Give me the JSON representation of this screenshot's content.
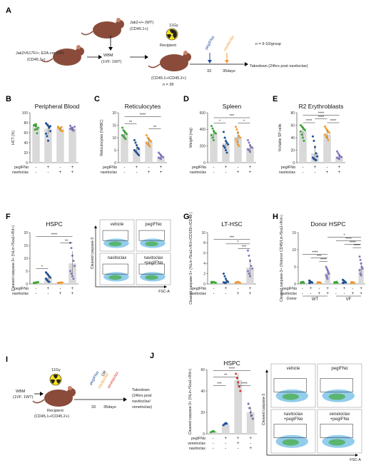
{
  "colors": {
    "vehicle": "#3aaa35",
    "pegifn": "#1b4f9c",
    "navitoclax": "#f39a2b",
    "combo": "#8478c4",
    "venetoclax": "#e0322e",
    "peg_ven": "#6b6bb5",
    "bar": "#d9d9d9"
  },
  "icons": [
    "mouse-icon",
    "radiation-icon",
    "arrow-icon"
  ],
  "panel_a": {
    "letter": "A",
    "donor_wt": "Jak2+/+ (WT)",
    "donor_wt_cd": "(CD45.1+)",
    "donor_vf": "Jak2V617F/+; E2A-cre (VF)",
    "donor_vf_cd": "(CD45.2+)",
    "wbm": "WBM",
    "wbm_ratio": "(1VF: 1WT)",
    "dose": "11Gy",
    "recipient": "Recipient",
    "recipient_cd": "(CD45.1+/CD45.2+)",
    "n_total": "n = 39",
    "treat1": "pegIFNα",
    "treat2": "navitoclax",
    "day1": "33",
    "day2": "35days",
    "n_group": "n = 9-10/group",
    "takedown": "Takedown (24hrs post navitoclax)"
  },
  "panel_i": {
    "letter": "I",
    "dose": "11Gy",
    "wbm": "WBM",
    "wbm_ratio": "(1VF: 1WT)",
    "recipient": "Recipient",
    "recipient_cd": "(CD45.1+/CD45.2+)",
    "treat1": "pegIFNα",
    "treat2": "navitoclax",
    "or": "OR",
    "treat3": "venetoclax",
    "day1": "33",
    "day2": "35days",
    "takedown_1": "Takedown",
    "takedown_2": "(24hrs post",
    "takedown_3": "navitoclax/",
    "takedown_4": "venetoclax)"
  },
  "flow_f": {
    "quads": [
      "vehicle",
      "pegIFNα",
      "navitoclax",
      "navitoclax\n+pegIFNα"
    ],
    "ylabel": "Cleaved caspase-3",
    "xlabel": "FSC-A"
  },
  "flow_j": {
    "quads": [
      "vehicle",
      "pegIFNα",
      "navitoclax\n+pegIFNα",
      "venetoclax\n+pegIFNα"
    ],
    "ylabel": "Cleaved caspase-3",
    "xlabel": "FSC-A"
  },
  "chart_data": [
    {
      "id": "B",
      "type": "bar",
      "title": "Peripheral Blood",
      "ylabel": "HCT (%)",
      "ylim": [
        0,
        100
      ],
      "yticks": [
        0,
        20,
        40,
        60,
        80,
        100
      ],
      "rows": {
        "pegIFNα": [
          "-",
          "+",
          "-",
          "+"
        ],
        "navitoclax": [
          "-",
          "-",
          "+",
          "+"
        ]
      },
      "groups": [
        {
          "color": "vehicle",
          "mean": 71,
          "points": [
            75,
            66,
            73,
            59,
            70,
            74,
            76,
            77,
            67
          ]
        },
        {
          "color": "pegifn",
          "mean": 68,
          "points": [
            79,
            76,
            74,
            70,
            63,
            58,
            53,
            44,
            71,
            73
          ]
        },
        {
          "color": "navitoclax",
          "mean": 68,
          "points": [
            72,
            68,
            66,
            71,
            63,
            70,
            69,
            67,
            64
          ]
        },
        {
          "color": "combo",
          "mean": 68,
          "points": [
            74,
            70,
            66,
            64,
            72,
            68,
            67,
            70,
            66
          ]
        }
      ],
      "sig": []
    },
    {
      "id": "C",
      "type": "bar",
      "title": "Reticulocytes",
      "ylabel": "Reticulocytes (%RBC)",
      "ylim": [
        0,
        20
      ],
      "yticks": [
        0,
        5,
        10,
        15,
        20
      ],
      "rows": {
        "pegIFNα": [
          "-",
          "+",
          "-",
          "+"
        ],
        "navitoclax": [
          "-",
          "-",
          "+",
          "+"
        ]
      },
      "groups": [
        {
          "color": "vehicle",
          "mean": 11.5,
          "points": [
            14,
            13,
            12.5,
            12,
            11.5,
            11,
            10.5,
            10,
            9.5
          ]
        },
        {
          "color": "pegifn",
          "mean": 5.5,
          "points": [
            9,
            8,
            7,
            6,
            5.5,
            5,
            4.5,
            4,
            3.5,
            3
          ]
        },
        {
          "color": "navitoclax",
          "mean": 8.5,
          "points": [
            11,
            10,
            9.5,
            9,
            8.5,
            8,
            7.5,
            7,
            6.5
          ]
        },
        {
          "color": "combo",
          "mean": 2.5,
          "points": [
            4,
            3.5,
            3,
            2.5,
            2.2,
            2,
            1.8,
            1.5
          ]
        }
      ],
      "sig": [
        {
          "g1": 0,
          "g2": 1,
          "label": "**",
          "y": 15.5
        },
        {
          "g1": 2,
          "g2": 3,
          "label": "**",
          "y": 13.5
        },
        {
          "g1": 0,
          "g2": 3,
          "label": "****",
          "y": 18.5
        }
      ]
    },
    {
      "id": "D",
      "type": "bar",
      "title": "Spleen",
      "ylabel": "Weight (mg)",
      "ylim": [
        0,
        600
      ],
      "yticks": [
        0,
        200,
        400,
        600
      ],
      "rows": {
        "pegIFNα": [
          "-",
          "+",
          "-",
          "+"
        ],
        "navitoclax": [
          "-",
          "-",
          "+",
          "+"
        ]
      },
      "groups": [
        {
          "color": "vehicle",
          "mean": 350,
          "points": [
            440,
            410,
            380,
            360,
            350,
            330,
            300,
            270
          ]
        },
        {
          "color": "pegifn",
          "mean": 230,
          "points": [
            370,
            300,
            260,
            240,
            220,
            200,
            180,
            150,
            120
          ]
        },
        {
          "color": "navitoclax",
          "mean": 310,
          "points": [
            430,
            400,
            360,
            320,
            300,
            280,
            250,
            220,
            200
          ]
        },
        {
          "color": "combo",
          "mean": 180,
          "points": [
            270,
            240,
            210,
            190,
            180,
            160,
            150,
            130
          ]
        }
      ],
      "sig": [
        {
          "g1": 0,
          "g2": 1,
          "label": "*",
          "y": 475
        },
        {
          "g1": 2,
          "g2": 3,
          "label": "*",
          "y": 475
        },
        {
          "g1": 0,
          "g2": 3,
          "label": "***",
          "y": 540
        }
      ]
    },
    {
      "id": "E",
      "type": "bar",
      "title": "R2 Erythroblasts",
      "ylabel": "%Viable SP cells",
      "ylim": [
        0,
        80
      ],
      "yticks": [
        0,
        20,
        40,
        60,
        80
      ],
      "rows": {
        "pegIFNα": [
          "-",
          "+",
          "-",
          "+"
        ],
        "navitoclax": [
          "-",
          "-",
          "+",
          "+"
        ]
      },
      "groups": [
        {
          "color": "vehicle",
          "mean": 50,
          "points": [
            60,
            58,
            56,
            54,
            52,
            50,
            45,
            40,
            35
          ]
        },
        {
          "color": "pegifn",
          "mean": 15,
          "points": [
            42,
            35,
            25,
            15,
            10,
            8,
            6,
            5,
            4
          ]
        },
        {
          "color": "navitoclax",
          "mean": 45,
          "points": [
            58,
            55,
            52,
            50,
            48,
            45,
            42,
            40,
            36
          ]
        },
        {
          "color": "combo",
          "mean": 10,
          "points": [
            18,
            15,
            12,
            10,
            9,
            8,
            7,
            6
          ]
        }
      ],
      "sig": [
        {
          "g1": 0,
          "g2": 1,
          "label": "****",
          "y": 64
        },
        {
          "g1": 2,
          "g2": 3,
          "label": "****",
          "y": 64
        },
        {
          "g1": 1,
          "g2": 2,
          "label": "****",
          "y": 70
        },
        {
          "g1": 0,
          "g2": 3,
          "label": "****",
          "y": 76
        }
      ]
    },
    {
      "id": "F",
      "type": "bar",
      "title": "HSPC",
      "ylabel": "Cleaved caspase-3+ (%Lin-/Sca1+/Kit+)",
      "ylim": [
        0,
        20
      ],
      "yticks": [
        0,
        5,
        10,
        15,
        20
      ],
      "rows": {
        "pegIFNα": [
          "-",
          "+",
          "-",
          "+"
        ],
        "navitoclax": [
          "-",
          "-",
          "+",
          "+"
        ]
      },
      "groups": [
        {
          "color": "vehicle",
          "mean": 0.5,
          "points": [
            0.3,
            0.4,
            0.5,
            0.6,
            0.7,
            0.4,
            0.5,
            0.6
          ]
        },
        {
          "color": "pegifn",
          "mean": 2.5,
          "points": [
            4.5,
            4,
            3.5,
            3,
            2.5,
            2,
            1.5,
            1,
            0.8
          ]
        },
        {
          "color": "navitoclax",
          "mean": 0.5,
          "points": [
            0.3,
            0.4,
            0.5,
            0.6,
            0.5,
            0.4
          ]
        },
        {
          "color": "combo",
          "mean": 8,
          "points": [
            16,
            14,
            11,
            9,
            7,
            5,
            4,
            3,
            2
          ]
        }
      ],
      "sig": [
        {
          "g1": 0,
          "g2": 1,
          "label": "*",
          "y": 6
        },
        {
          "g1": 2,
          "g2": 3,
          "label": "**",
          "y": 16
        },
        {
          "g1": 0,
          "g2": 3,
          "label": "****",
          "y": 18.5
        }
      ]
    },
    {
      "id": "G",
      "type": "bar",
      "title": "LT-HSC",
      "ylabel": "Cleaved caspase-3+ (%Lin-/Sca1+/Kit+/CD150+/CD48-)",
      "ylim": [
        0,
        10
      ],
      "yticks": [
        0,
        2,
        4,
        6,
        8,
        10
      ],
      "rows": {
        "pegIFNα": [
          "-",
          "+",
          "-",
          "+"
        ],
        "navitoclax": [
          "-",
          "-",
          "+",
          "+"
        ]
      },
      "groups": [
        {
          "color": "vehicle",
          "mean": 0.3,
          "points": [
            0.2,
            0.3,
            0.4,
            0.3,
            0.2,
            0.4,
            0.3
          ]
        },
        {
          "color": "pegifn",
          "mean": 0.6,
          "points": [
            2,
            1.5,
            1,
            0.6,
            0.4,
            0.3,
            0.2,
            0.2
          ]
        },
        {
          "color": "navitoclax",
          "mean": 0.3,
          "points": [
            0.2,
            0.3,
            0.4,
            0.3,
            0.2,
            0.3
          ]
        },
        {
          "color": "combo",
          "mean": 3.2,
          "points": [
            6.5,
            5.5,
            4.5,
            3.5,
            3,
            2.5,
            2,
            1.5
          ]
        }
      ],
      "sig": [
        {
          "g1": 2,
          "g2": 3,
          "label": "***",
          "y": 6.9
        },
        {
          "g1": 1,
          "g2": 3,
          "label": "*",
          "y": 7.8
        },
        {
          "g1": 0,
          "g2": 3,
          "label": "***",
          "y": 8.7
        }
      ]
    },
    {
      "id": "H",
      "type": "bar",
      "title": "Donor HSPC",
      "ylabel": "Cleaved caspase-3+ (%donor CD45/Lin-/Sca1+/Kit+)",
      "ylim": [
        0,
        15
      ],
      "yticks": [
        0,
        5,
        10,
        15
      ],
      "rows": {
        "pegIFNα": [
          "-",
          "+",
          "-",
          "+",
          "-",
          "+",
          "-",
          "+"
        ],
        "navitoclax": [
          "-",
          "-",
          "+",
          "+",
          "-",
          "-",
          "+",
          "+"
        ]
      },
      "donor": {
        "label": "Donor",
        "groups": [
          "WT",
          "VF"
        ]
      },
      "groups": [
        {
          "color": "vehicle",
          "mean": 0.4,
          "points": [
            0.3,
            0.5,
            0.4,
            0.6,
            0.3,
            0.5,
            0.4
          ]
        },
        {
          "color": "pegifn",
          "mean": 0.5,
          "points": [
            1,
            0.8,
            0.6,
            0.5,
            0.4,
            0.3,
            0.3
          ]
        },
        {
          "color": "navitoclax",
          "mean": 0.4,
          "points": [
            0.3,
            0.4,
            0.5,
            0.4,
            0.3,
            0.5
          ]
        },
        {
          "color": "combo",
          "mean": 3.2,
          "points": [
            5,
            4.5,
            4,
            3.5,
            3,
            2.5,
            2,
            1.5
          ]
        },
        {
          "color": "vehicle",
          "mean": 0.4,
          "points": [
            0.3,
            0.5,
            0.4,
            0.6,
            0.3,
            0.5,
            0.4
          ]
        },
        {
          "color": "pegifn",
          "mean": 0.6,
          "points": [
            1.2,
            1,
            0.8,
            0.6,
            0.4,
            0.3,
            0.3
          ]
        },
        {
          "color": "navitoclax",
          "mean": 0.4,
          "points": [
            0.3,
            0.4,
            0.5,
            0.4,
            0.3,
            0.5
          ]
        },
        {
          "color": "combo",
          "mean": 4.5,
          "points": [
            8,
            7,
            6,
            5,
            4.5,
            4,
            3,
            2.5
          ]
        }
      ],
      "sig": [
        {
          "g1": 2,
          "g2": 3,
          "label": "****",
          "y": 6.6
        },
        {
          "g1": 1,
          "g2": 3,
          "label": "***",
          "y": 7.6
        },
        {
          "g1": 0,
          "g2": 3,
          "label": "****",
          "y": 8.6
        },
        {
          "g1": 6,
          "g2": 7,
          "label": "****",
          "y": 10.6
        },
        {
          "g1": 5,
          "g2": 7,
          "label": "****",
          "y": 11.6
        },
        {
          "g1": 4,
          "g2": 7,
          "label": "****",
          "y": 12.6
        },
        {
          "g1": 3,
          "g2": 7,
          "label": "*",
          "y": 13.6
        }
      ]
    },
    {
      "id": "J",
      "type": "bar",
      "title": "HSPC",
      "ylabel": "Cleaved caspase-3+ (%Lin-/Sca1+/Kit+)",
      "ylim": [
        0,
        60
      ],
      "yticks": [
        0,
        20,
        40,
        60
      ],
      "rows": {
        "pegIFNα": [
          "-",
          "+",
          "+",
          "+"
        ],
        "venetoclax": [
          "-",
          "-",
          "+",
          "-"
        ],
        "navitoclax": [
          "-",
          "-",
          "-",
          "+"
        ]
      },
      "groups": [
        {
          "color": "vehicle",
          "mean": 2,
          "points": [
            1.5,
            2,
            2.5,
            2
          ]
        },
        {
          "color": "pegifn",
          "mean": 9,
          "points": [
            8,
            9,
            10,
            9.5
          ]
        },
        {
          "color": "venetoclax",
          "mean": 50,
          "points": [
            56,
            52,
            48,
            44,
            40
          ]
        },
        {
          "color": "peg_ven",
          "mean": 20,
          "points": [
            28,
            24,
            20,
            17,
            14
          ]
        }
      ],
      "sig": [
        {
          "g1": 0,
          "g2": 1,
          "label": "***",
          "y": 45
        },
        {
          "g1": 2,
          "g2": 3,
          "label": "****",
          "y": 45
        },
        {
          "g1": 0,
          "g2": 2,
          "label": "**",
          "y": 53
        },
        {
          "g1": 0,
          "g2": 3,
          "label": "****",
          "y": 59
        }
      ]
    }
  ]
}
